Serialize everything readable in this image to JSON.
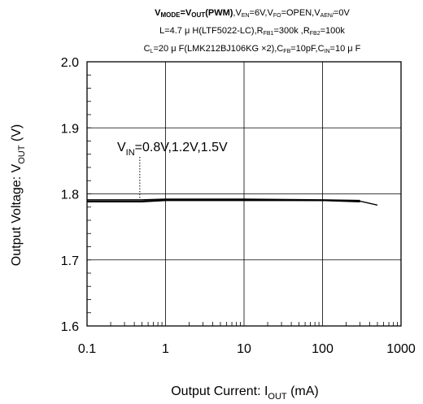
{
  "conditions": {
    "line1": {
      "vmode_v": "V",
      "vmode_sub": "MODE",
      "eq": "=",
      "vout_v": "V",
      "vout_sub": "OUT",
      "pwm": "(PWM)",
      "ven_v": ",V",
      "ven_sub": "EN",
      "ven_val": "=6V",
      "vfo_v": ",V",
      "vfo_sub": "FO",
      "vfo_val": "=OPEN",
      "vaen_v": ",V",
      "vaen_sub": "AEN/",
      "vaen_val": "=0V"
    },
    "line2": {
      "l_part": "L=4.7 μ H(LTF5022-LC),R",
      "rfb1_sub": "FB1",
      "rfb1_val": "=300k",
      "rfb2_pre": " ,R",
      "rfb2_sub": "FB2",
      "rfb2_val": "=100k"
    },
    "line3": {
      "cl_c": "C",
      "cl_sub": "L",
      "cl_val": "=20 μ F(LMK212BJ106KG ×2),C",
      "cfb_sub": "FB",
      "cfb_val": "=10pF,C",
      "cin_sub": "IN",
      "cin_val": "=10 μ F"
    }
  },
  "chart_data": {
    "type": "line",
    "xscale": "log",
    "xlim": [
      0.1,
      1000
    ],
    "ylim": [
      1.6,
      2.0
    ],
    "xticks": [
      "0.1",
      "1",
      "10",
      "100",
      "1000"
    ],
    "yticks": [
      "1.6",
      "1.7",
      "1.8",
      "1.9",
      "2.0"
    ],
    "xlabel": {
      "main": "Output Current: I",
      "sub": "OUT",
      "unit": " (mA)"
    },
    "ylabel": {
      "main": "Output Voltage: V",
      "sub": "OUT",
      "unit": " (V)"
    },
    "grid": true,
    "annotation": {
      "pre": "V",
      "sub": "IN",
      "text": "=0.8V,1.2V,1.5V",
      "points_to": {
        "x": 0.47,
        "y": 1.788
      }
    },
    "series": [
      {
        "x": [
          0.1,
          0.5,
          1,
          10,
          100,
          300
        ],
        "y": [
          1.788,
          1.788,
          1.79,
          1.79,
          1.79,
          1.788
        ]
      },
      {
        "x": [
          0.1,
          0.5,
          1,
          10,
          100,
          300,
          500
        ],
        "y": [
          1.789,
          1.789,
          1.791,
          1.791,
          1.79,
          1.789,
          1.783
        ]
      },
      {
        "x": [
          0.1,
          0.5,
          1,
          10,
          100,
          300
        ],
        "y": [
          1.791,
          1.791,
          1.792,
          1.792,
          1.791,
          1.79
        ]
      }
    ]
  }
}
